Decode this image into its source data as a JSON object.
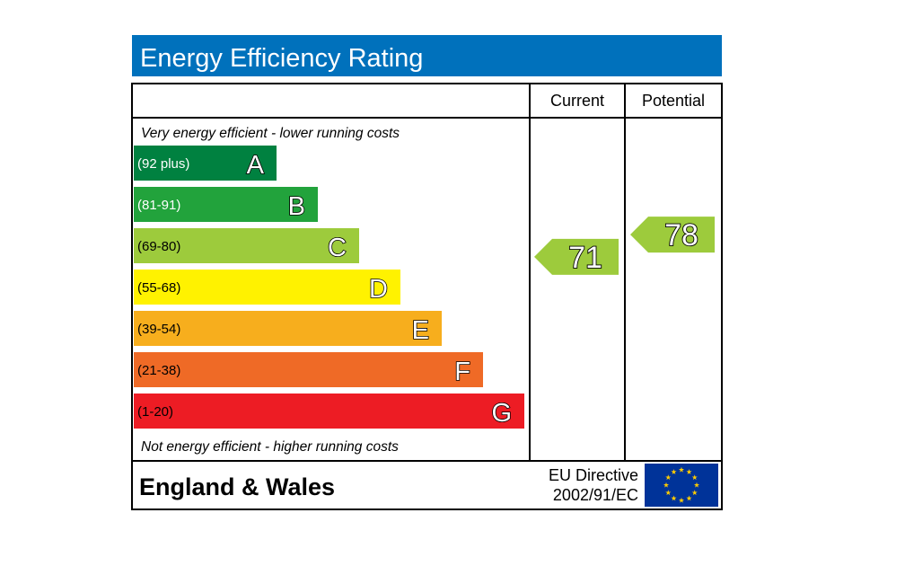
{
  "chart_data": {
    "type": "bar",
    "title": "Energy Efficiency Rating",
    "columns": {
      "current": "Current",
      "potential": "Potential"
    },
    "top_note": "Very energy efficient - lower running costs",
    "bottom_note": "Not energy efficient - higher running costs",
    "bands": [
      {
        "letter": "A",
        "range": "(92 plus)",
        "min": 92,
        "max": 100,
        "color": "#008140",
        "range_color": "#ffffff"
      },
      {
        "letter": "B",
        "range": "(81-91)",
        "min": 81,
        "max": 91,
        "color": "#22a33c",
        "range_color": "#ffffff"
      },
      {
        "letter": "C",
        "range": "(69-80)",
        "min": 69,
        "max": 80,
        "color": "#9dcb3c",
        "range_color": "#000000"
      },
      {
        "letter": "D",
        "range": "(55-68)",
        "min": 55,
        "max": 68,
        "color": "#fff200",
        "range_color": "#000000"
      },
      {
        "letter": "E",
        "range": "(39-54)",
        "min": 39,
        "max": 54,
        "color": "#f7ae1d",
        "range_color": "#000000"
      },
      {
        "letter": "F",
        "range": "(21-38)",
        "min": 21,
        "max": 38,
        "color": "#ef6a26",
        "range_color": "#000000"
      },
      {
        "letter": "G",
        "range": "(1-20)",
        "min": 1,
        "max": 20,
        "color": "#ed1c24",
        "range_color": "#000000"
      }
    ],
    "current": {
      "value": 71,
      "label": "71",
      "color": "#9dcb3c"
    },
    "potential": {
      "value": 78,
      "label": "78",
      "color": "#9dcb3c"
    },
    "footer": {
      "region": "England & Wales",
      "directive_line1": "EU Directive",
      "directive_line2": "2002/91/EC"
    },
    "colors": {
      "title_bar": "#0071bc",
      "eu_flag": "#003399",
      "eu_stars": "#ffcc00"
    }
  }
}
